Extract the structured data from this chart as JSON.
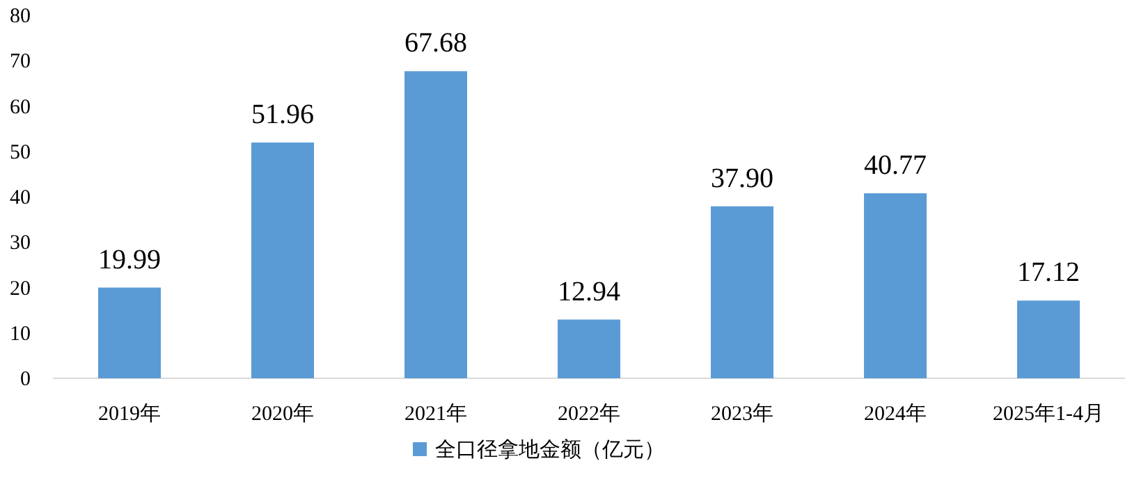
{
  "chart_data": {
    "type": "bar",
    "categories": [
      "2019年",
      "2020年",
      "2021年",
      "2022年",
      "2023年",
      "2024年",
      "2025年1-4月"
    ],
    "series": [
      {
        "name": "全口径拿地金额（亿元）",
        "color": "#5b9bd5",
        "values": [
          19.99,
          51.96,
          67.68,
          12.94,
          37.9,
          40.77,
          17.12
        ],
        "value_labels": [
          "19.99",
          "51.96",
          "67.68",
          "12.94",
          "37.90",
          "40.77",
          "17.12"
        ]
      }
    ],
    "ylim": [
      0,
      80
    ],
    "yticks": [
      0,
      10,
      20,
      30,
      40,
      50,
      60,
      70,
      80
    ],
    "legend": "bottom"
  }
}
